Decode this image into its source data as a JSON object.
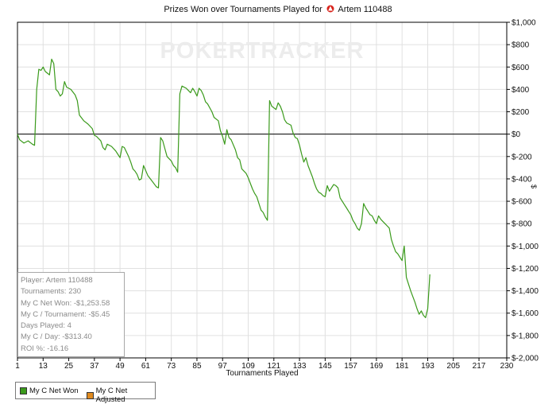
{
  "title_prefix": "Prizes Won over Tournaments Played for",
  "player_name": "Artem 110488",
  "watermark": "POKERTRACKER",
  "colors": {
    "series": "#3a9a1b",
    "legend_net_won": "#3a9a1b",
    "legend_net_adjusted": "#e08a1e",
    "zero_line": "#000000",
    "grid": "#e0e0e0",
    "watermark": "#ececec"
  },
  "stats": {
    "player": "Player: Artem 110488",
    "tournaments": "Tournaments: 230",
    "net_won": "My C Net Won: -$1,253.58",
    "per_tournament": "My C / Tournament: -$5.45",
    "days_played": "Days Played: 4",
    "per_day": "My C / Day: -$313.40",
    "roi": "ROI %: -16.16"
  },
  "legend": {
    "net_won": "My C Net Won",
    "net_adjusted": "My C Net Adjusted"
  },
  "chart_data": {
    "type": "line",
    "title": "Prizes Won over Tournaments Played for Artem 110488",
    "xlabel": "Tournaments Played",
    "ylabel": "$",
    "xlim": [
      1,
      230
    ],
    "ylim": [
      -2000,
      1000
    ],
    "x_ticks": [
      1,
      13,
      25,
      37,
      49,
      61,
      73,
      85,
      97,
      109,
      121,
      133,
      145,
      157,
      169,
      181,
      193,
      205,
      217,
      230
    ],
    "y_ticks": [
      1000,
      800,
      600,
      400,
      200,
      0,
      -200,
      -400,
      -600,
      -800,
      -1000,
      -1200,
      -1400,
      -1600,
      -1800,
      -2000
    ],
    "y_tick_labels": [
      "$1,000",
      "$800",
      "$600",
      "$400",
      "$200",
      "$0",
      "$-200",
      "$-400",
      "$-600",
      "$-800",
      "$-1,000",
      "$-1,200",
      "$-1,400",
      "$-1,600",
      "$-1,800",
      "$-2,000"
    ],
    "grid": true,
    "legend_position": "bottom-left",
    "series": [
      {
        "name": "My C Net Won",
        "points": [
          [
            1,
            0
          ],
          [
            2,
            -50
          ],
          [
            4,
            -80
          ],
          [
            6,
            -60
          ],
          [
            8,
            -90
          ],
          [
            9,
            -100
          ],
          [
            10,
            400
          ],
          [
            11,
            580
          ],
          [
            12,
            570
          ],
          [
            13,
            600
          ],
          [
            14,
            560
          ],
          [
            16,
            530
          ],
          [
            17,
            670
          ],
          [
            18,
            630
          ],
          [
            19,
            400
          ],
          [
            20,
            380
          ],
          [
            21,
            340
          ],
          [
            22,
            360
          ],
          [
            23,
            470
          ],
          [
            24,
            420
          ],
          [
            26,
            400
          ],
          [
            28,
            350
          ],
          [
            29,
            300
          ],
          [
            30,
            170
          ],
          [
            32,
            120
          ],
          [
            34,
            90
          ],
          [
            36,
            50
          ],
          [
            37,
            -10
          ],
          [
            38,
            -20
          ],
          [
            39,
            -40
          ],
          [
            40,
            -60
          ],
          [
            41,
            -120
          ],
          [
            42,
            -140
          ],
          [
            43,
            -90
          ],
          [
            45,
            -110
          ],
          [
            47,
            -150
          ],
          [
            48,
            -180
          ],
          [
            49,
            -210
          ],
          [
            50,
            -110
          ],
          [
            51,
            -120
          ],
          [
            53,
            -200
          ],
          [
            54,
            -250
          ],
          [
            55,
            -310
          ],
          [
            56,
            -330
          ],
          [
            57,
            -360
          ],
          [
            58,
            -410
          ],
          [
            59,
            -400
          ],
          [
            60,
            -280
          ],
          [
            62,
            -370
          ],
          [
            64,
            -420
          ],
          [
            66,
            -470
          ],
          [
            67,
            -480
          ],
          [
            68,
            -30
          ],
          [
            69,
            -60
          ],
          [
            70,
            -130
          ],
          [
            71,
            -200
          ],
          [
            73,
            -240
          ],
          [
            74,
            -280
          ],
          [
            75,
            -300
          ],
          [
            76,
            -340
          ],
          [
            77,
            360
          ],
          [
            78,
            430
          ],
          [
            80,
            410
          ],
          [
            81,
            390
          ],
          [
            82,
            370
          ],
          [
            83,
            410
          ],
          [
            84,
            380
          ],
          [
            85,
            340
          ],
          [
            86,
            410
          ],
          [
            87,
            390
          ],
          [
            88,
            350
          ],
          [
            89,
            290
          ],
          [
            90,
            270
          ],
          [
            92,
            200
          ],
          [
            93,
            150
          ],
          [
            95,
            120
          ],
          [
            96,
            30
          ],
          [
            97,
            -20
          ],
          [
            98,
            -90
          ],
          [
            99,
            40
          ],
          [
            100,
            -30
          ],
          [
            101,
            -50
          ],
          [
            103,
            -140
          ],
          [
            104,
            -210
          ],
          [
            105,
            -230
          ],
          [
            106,
            -310
          ],
          [
            108,
            -350
          ],
          [
            109,
            -390
          ],
          [
            110,
            -440
          ],
          [
            111,
            -490
          ],
          [
            112,
            -530
          ],
          [
            113,
            -560
          ],
          [
            114,
            -620
          ],
          [
            115,
            -680
          ],
          [
            116,
            -700
          ],
          [
            117,
            -740
          ],
          [
            118,
            -770
          ],
          [
            119,
            300
          ],
          [
            120,
            250
          ],
          [
            122,
            220
          ],
          [
            123,
            280
          ],
          [
            124,
            250
          ],
          [
            125,
            200
          ],
          [
            126,
            130
          ],
          [
            127,
            100
          ],
          [
            129,
            80
          ],
          [
            130,
            10
          ],
          [
            131,
            -30
          ],
          [
            132,
            -40
          ],
          [
            133,
            -100
          ],
          [
            134,
            -180
          ],
          [
            135,
            -250
          ],
          [
            136,
            -210
          ],
          [
            137,
            -280
          ],
          [
            138,
            -330
          ],
          [
            139,
            -380
          ],
          [
            140,
            -440
          ],
          [
            141,
            -490
          ],
          [
            142,
            -520
          ],
          [
            143,
            -530
          ],
          [
            144,
            -550
          ],
          [
            145,
            -560
          ],
          [
            146,
            -460
          ],
          [
            147,
            -510
          ],
          [
            148,
            -480
          ],
          [
            149,
            -450
          ],
          [
            150,
            -460
          ],
          [
            151,
            -480
          ],
          [
            152,
            -570
          ],
          [
            154,
            -630
          ],
          [
            155,
            -660
          ],
          [
            156,
            -690
          ],
          [
            157,
            -720
          ],
          [
            158,
            -770
          ],
          [
            159,
            -800
          ],
          [
            160,
            -840
          ],
          [
            161,
            -860
          ],
          [
            162,
            -800
          ],
          [
            163,
            -620
          ],
          [
            164,
            -660
          ],
          [
            165,
            -690
          ],
          [
            166,
            -720
          ],
          [
            167,
            -730
          ],
          [
            168,
            -770
          ],
          [
            169,
            -800
          ],
          [
            170,
            -730
          ],
          [
            171,
            -760
          ],
          [
            172,
            -780
          ],
          [
            173,
            -800
          ],
          [
            174,
            -820
          ],
          [
            175,
            -840
          ],
          [
            176,
            -940
          ],
          [
            177,
            -1000
          ],
          [
            178,
            -1050
          ],
          [
            179,
            -1070
          ],
          [
            180,
            -1100
          ],
          [
            181,
            -1130
          ],
          [
            182,
            -1000
          ],
          [
            183,
            -1280
          ],
          [
            184,
            -1340
          ],
          [
            185,
            -1400
          ],
          [
            186,
            -1450
          ],
          [
            187,
            -1500
          ],
          [
            188,
            -1560
          ],
          [
            189,
            -1610
          ],
          [
            190,
            -1580
          ],
          [
            191,
            -1620
          ],
          [
            192,
            -1640
          ],
          [
            193,
            -1560
          ],
          [
            194,
            -1253.58
          ]
        ]
      }
    ]
  }
}
